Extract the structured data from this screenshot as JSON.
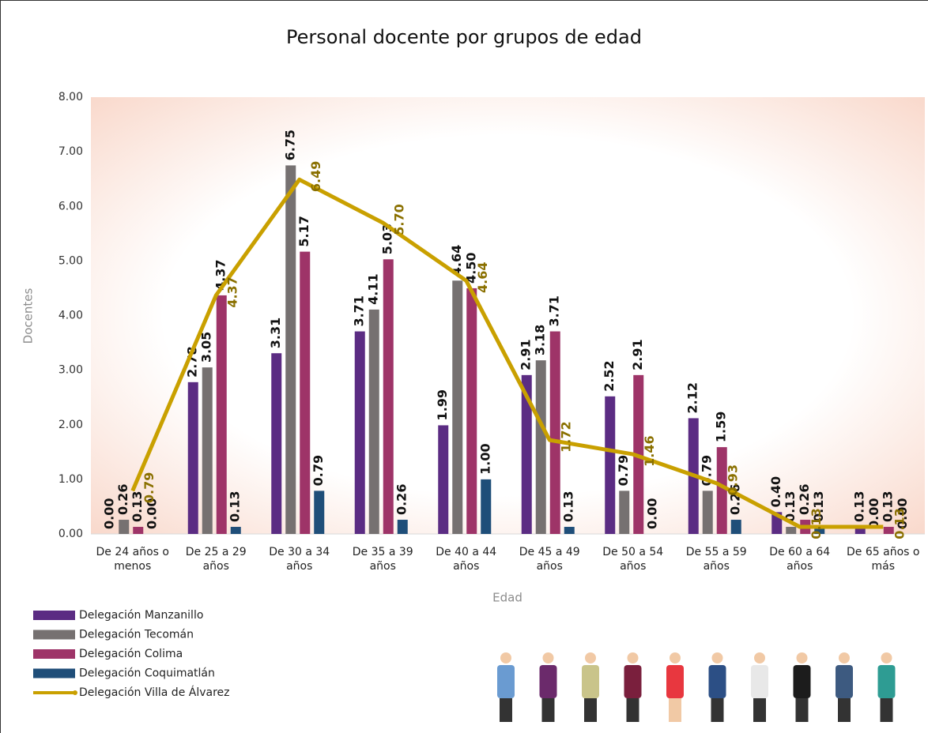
{
  "chart_data": {
    "type": "bar-line",
    "title": "Personal docente por grupos de edad",
    "x_label": "Edad",
    "y_label": "Docentes",
    "categories": [
      "De 24 años o menos",
      "De 25 a 29 años",
      "De 30 a 34 años",
      "De 35 a 39 años",
      "De 40 a 44 años",
      "De 45 a 49 años",
      "De 50 a 54 años",
      "De 55 a 59 años",
      "De 60 a 64 años",
      "De 65 años o más"
    ],
    "ylim": [
      0,
      8
    ],
    "yticks": [
      {
        "value": 0,
        "label": "0.00"
      },
      {
        "value": 1,
        "label": "1.00"
      },
      {
        "value": 2,
        "label": "2.00"
      },
      {
        "value": 3,
        "label": "3.00"
      },
      {
        "value": 4,
        "label": "4.00"
      },
      {
        "value": 5,
        "label": "5.00"
      },
      {
        "value": 6,
        "label": "6.00"
      },
      {
        "value": 7,
        "label": "7.00"
      },
      {
        "value": 8,
        "label": "8.00"
      }
    ],
    "series": [
      {
        "name": "Delegación Manzanillo",
        "type": "bar",
        "color": "#5b2c83",
        "values": [
          0,
          2.78,
          3.31,
          3.71,
          1.99,
          2.91,
          2.52,
          2.12,
          0.4,
          0.13
        ],
        "value_labels": [
          "0.00",
          "2.78",
          "3.31",
          "3.71",
          "1.99",
          "2.91",
          "2.52",
          "2.12",
          "0.40",
          "0.13"
        ]
      },
      {
        "name": "Delegación Tecomán",
        "type": "bar",
        "color": "#767171",
        "values": [
          0.26,
          3.05,
          6.75,
          4.11,
          4.64,
          3.18,
          0.79,
          0.79,
          0.13,
          0
        ],
        "value_labels": [
          "0.26",
          "3.05",
          "6.75",
          "4.11",
          "4.64",
          "3.18",
          "0.79",
          "0.79",
          "0.13",
          "0.00"
        ]
      },
      {
        "name": "Delegación Colima",
        "type": "bar",
        "color": "#9e3468",
        "values": [
          0.13,
          4.37,
          5.17,
          5.03,
          4.5,
          3.71,
          2.91,
          1.59,
          0.26,
          0.13
        ],
        "value_labels": [
          "0.13",
          "4.37",
          "5.17",
          "5.03",
          "4.50",
          "3.71",
          "2.91",
          "1.59",
          "0.26",
          "0.13"
        ]
      },
      {
        "name": "Delegación Coquimatlán",
        "type": "bar",
        "color": "#1f4e79",
        "values": [
          0,
          0.13,
          0.79,
          0.26,
          1,
          0.13,
          0,
          0.26,
          0.13,
          0
        ],
        "value_labels": [
          "0.00",
          "0.13",
          "0.79",
          "0.26",
          "1.00",
          "0.13",
          "0.00",
          "0.26",
          "0.13",
          "0.00"
        ]
      },
      {
        "name": "Delegación Villa de Álvarez",
        "type": "line",
        "color": "#c9a000",
        "label_color": "#8a7000",
        "values": [
          0.79,
          4.37,
          6.49,
          5.7,
          4.64,
          1.72,
          1.46,
          0.93,
          0.13,
          0.13
        ],
        "value_labels": [
          "0.79",
          "4.37",
          "6.49",
          "5.70",
          "4.64",
          "1.72",
          "1.46",
          "0.93",
          "0.13",
          "0.13"
        ]
      }
    ]
  }
}
